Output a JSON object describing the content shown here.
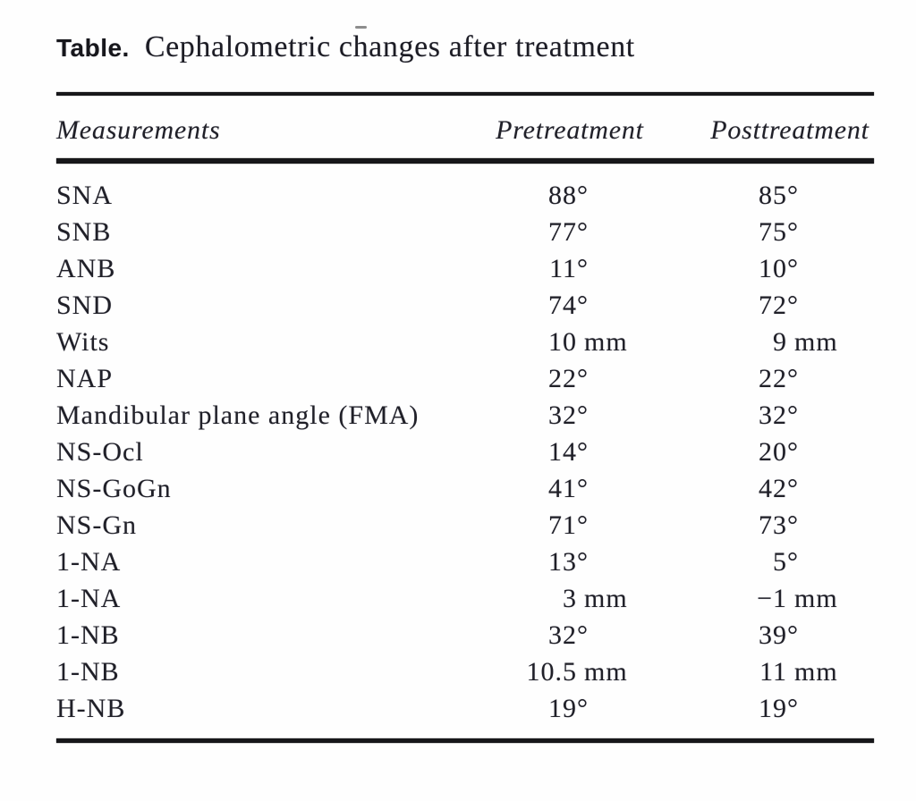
{
  "title": {
    "label": "Table.",
    "caption": "Cephalometric changes after treatment"
  },
  "table": {
    "columns": [
      {
        "key": "measurement",
        "label": "Measurements"
      },
      {
        "key": "pre",
        "label": "Pretreatment"
      },
      {
        "key": "post",
        "label": "Posttreatment"
      }
    ],
    "rows": [
      {
        "measurement": "SNA",
        "pre": "88°",
        "post": "85°"
      },
      {
        "measurement": "SNB",
        "pre": "77°",
        "post": "75°"
      },
      {
        "measurement": "ANB",
        "pre": "11°",
        "post": "10°"
      },
      {
        "measurement": "SND",
        "pre": "74°",
        "post": "72°"
      },
      {
        "measurement": "Wits",
        "pre": "10 mm",
        "post": "9 mm"
      },
      {
        "measurement": "NAP",
        "pre": "22°",
        "post": "22°"
      },
      {
        "measurement": "Mandibular plane angle (FMA)",
        "pre": "32°",
        "post": "32°"
      },
      {
        "measurement": "NS-Ocl",
        "pre": "14°",
        "post": "20°"
      },
      {
        "measurement": "NS-GoGn",
        "pre": "41°",
        "post": "42°"
      },
      {
        "measurement": "NS-Gn",
        "pre": "71°",
        "post": "73°"
      },
      {
        "measurement": "1-NA",
        "pre": "13°",
        "post": "5°"
      },
      {
        "measurement": "1-NA",
        "pre": "3 mm",
        "post": "−1 mm"
      },
      {
        "measurement": "1-NB",
        "pre": "32°",
        "post": "39°"
      },
      {
        "measurement": "1-NB",
        "pre": "10.5 mm",
        "post": "11 mm"
      },
      {
        "measurement": "H-NB",
        "pre": "19°",
        "post": "19°"
      }
    ]
  }
}
